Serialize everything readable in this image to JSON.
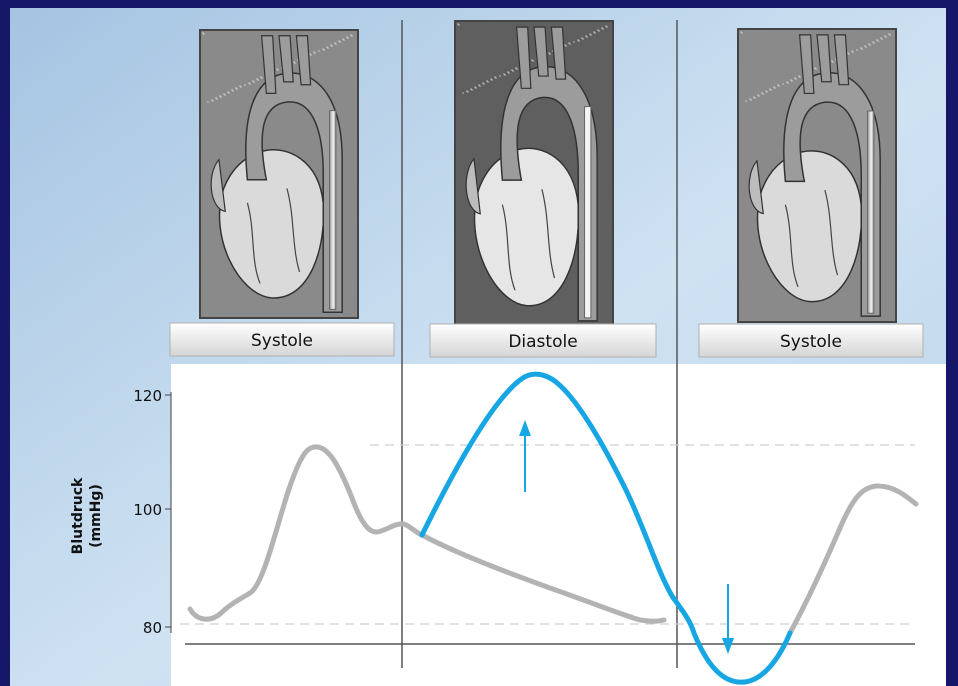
{
  "panels": [
    {
      "label": "Systole",
      "illustration": "heart-aorta-illustration"
    },
    {
      "label": "Diastole",
      "illustration": "heart-aorta-illustration"
    },
    {
      "label": "Systole",
      "illustration": "heart-aorta-illustration"
    }
  ],
  "axis": {
    "ylabel_line1": "Blutdruck",
    "ylabel_line2": "(mmHg)",
    "ticks": [
      "120",
      "100",
      "80"
    ]
  },
  "colors": {
    "frame": "#17176a",
    "background_gradient": [
      "#a7c6e4",
      "#d8e8f5"
    ],
    "plot_area": "#ffffff",
    "baseline_curve": "#b3b3b3",
    "augmented_curve": "#16a6e3",
    "arrows": "#16a6e3",
    "dividers": "#555555"
  },
  "icons": [
    "up-arrow-icon",
    "down-arrow-icon"
  ]
}
